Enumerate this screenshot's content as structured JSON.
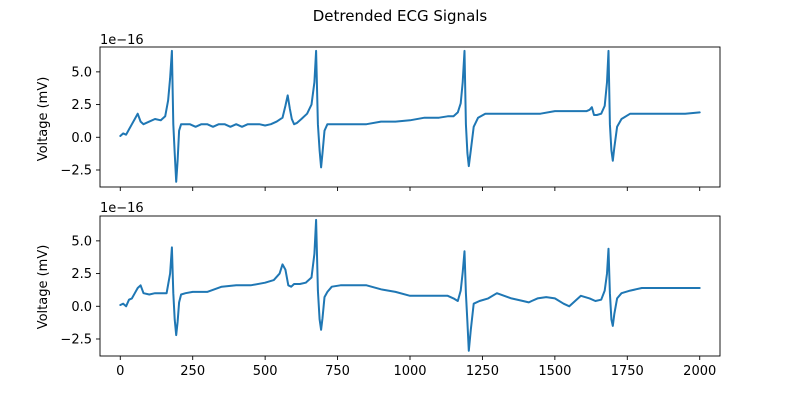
{
  "figure": {
    "title": "Detrended ECG Signals"
  },
  "chart_data": [
    {
      "type": "line",
      "ylabel": "Voltage (mV)",
      "offset_text": "1e−16",
      "xlim": [
        -70,
        2070
      ],
      "ylim": [
        -3.8,
        6.9
      ],
      "x_ticks": [
        0,
        250,
        500,
        750,
        1000,
        1250,
        1500,
        1750,
        2000
      ],
      "show_x_tick_labels": false,
      "y_ticks": [
        -2.5,
        0.0,
        2.5,
        5.0
      ],
      "y_tick_labels": [
        "−2.5",
        "0.0",
        "2.5",
        "5.0"
      ],
      "grid": false,
      "color": "#1f77b4",
      "series": [
        {
          "x": [
            0,
            10,
            20,
            30,
            40,
            50,
            60,
            70,
            80,
            100,
            120,
            140,
            155,
            165,
            172,
            178,
            183,
            188,
            193,
            198,
            203,
            210,
            220,
            240,
            260,
            280,
            300,
            320,
            340,
            360,
            380,
            400,
            420,
            440,
            460,
            480,
            500,
            520,
            540,
            560,
            570,
            578,
            585,
            592,
            600,
            610,
            625,
            645,
            660,
            670,
            676,
            682,
            688,
            693,
            698,
            705,
            715,
            730,
            760,
            800,
            850,
            900,
            950,
            1000,
            1050,
            1100,
            1130,
            1150,
            1165,
            1175,
            1182,
            1188,
            1193,
            1198,
            1203,
            1210,
            1220,
            1235,
            1260,
            1300,
            1350,
            1400,
            1450,
            1500,
            1550,
            1590,
            1610,
            1620,
            1628,
            1635,
            1645,
            1660,
            1672,
            1680,
            1685,
            1690,
            1695,
            1700,
            1705,
            1715,
            1730,
            1760,
            1800,
            1850,
            1900,
            1950,
            2000
          ],
          "y": [
            0.1,
            0.3,
            0.2,
            0.6,
            1.0,
            1.4,
            1.8,
            1.2,
            1.0,
            1.2,
            1.4,
            1.3,
            1.6,
            2.8,
            4.5,
            6.6,
            1.0,
            -1.2,
            -3.4,
            -1.8,
            0.5,
            1.0,
            1.0,
            1.0,
            0.8,
            1.0,
            1.0,
            0.8,
            1.0,
            1.0,
            0.8,
            1.0,
            0.8,
            1.0,
            1.0,
            1.0,
            0.9,
            1.0,
            1.2,
            1.5,
            2.4,
            3.2,
            2.2,
            1.4,
            1.0,
            1.1,
            1.4,
            1.8,
            2.5,
            4.2,
            6.6,
            1.0,
            -1.0,
            -2.3,
            -1.2,
            0.5,
            1.0,
            1.0,
            1.0,
            1.0,
            1.0,
            1.2,
            1.2,
            1.3,
            1.5,
            1.5,
            1.6,
            1.6,
            1.9,
            2.6,
            4.2,
            6.6,
            1.0,
            -1.2,
            -2.2,
            -1.0,
            0.8,
            1.5,
            1.8,
            1.8,
            1.8,
            1.8,
            1.8,
            2.0,
            2.0,
            2.0,
            2.0,
            2.1,
            2.3,
            1.7,
            1.7,
            1.8,
            2.4,
            4.2,
            6.6,
            1.0,
            -1.0,
            -1.8,
            -0.8,
            0.8,
            1.4,
            1.8,
            1.8,
            1.8,
            1.8,
            1.8,
            1.9
          ]
        }
      ]
    },
    {
      "type": "line",
      "ylabel": "Voltage (mV)",
      "offset_text": "1e−16",
      "xlim": [
        -70,
        2070
      ],
      "ylim": [
        -3.8,
        6.9
      ],
      "x_ticks": [
        0,
        250,
        500,
        750,
        1000,
        1250,
        1500,
        1750,
        2000
      ],
      "x_tick_labels": [
        "0",
        "250",
        "500",
        "750",
        "1000",
        "1250",
        "1500",
        "1750",
        "2000"
      ],
      "show_x_tick_labels": true,
      "y_ticks": [
        -2.5,
        0.0,
        2.5,
        5.0
      ],
      "y_tick_labels": [
        "−2.5",
        "0.0",
        "2.5",
        "5.0"
      ],
      "grid": false,
      "color": "#1f77b4",
      "series": [
        {
          "x": [
            0,
            10,
            20,
            30,
            40,
            50,
            60,
            70,
            80,
            100,
            120,
            140,
            160,
            172,
            178,
            183,
            188,
            193,
            198,
            203,
            210,
            225,
            250,
            300,
            350,
            400,
            450,
            500,
            530,
            550,
            560,
            570,
            580,
            590,
            600,
            620,
            640,
            660,
            670,
            676,
            682,
            688,
            693,
            698,
            705,
            715,
            730,
            760,
            800,
            850,
            900,
            950,
            1000,
            1050,
            1100,
            1130,
            1150,
            1165,
            1175,
            1182,
            1188,
            1193,
            1198,
            1203,
            1210,
            1220,
            1240,
            1270,
            1300,
            1350,
            1390,
            1410,
            1420,
            1440,
            1470,
            1500,
            1530,
            1550,
            1570,
            1590,
            1620,
            1640,
            1660,
            1672,
            1680,
            1685,
            1690,
            1695,
            1700,
            1705,
            1715,
            1730,
            1760,
            1800,
            1850,
            1900,
            1950,
            2000
          ],
          "y": [
            0.1,
            0.2,
            0.0,
            0.5,
            0.6,
            1.0,
            1.4,
            1.6,
            1.0,
            0.9,
            1.0,
            1.0,
            1.0,
            2.5,
            4.5,
            1.0,
            -1.0,
            -2.2,
            -1.2,
            0.3,
            0.9,
            1.0,
            1.1,
            1.1,
            1.5,
            1.6,
            1.6,
            1.8,
            2.0,
            2.5,
            3.2,
            2.8,
            1.6,
            1.5,
            1.7,
            1.7,
            1.8,
            2.2,
            4.0,
            6.6,
            1.2,
            -1.0,
            -1.8,
            -0.9,
            0.7,
            1.1,
            1.5,
            1.6,
            1.6,
            1.6,
            1.3,
            1.1,
            0.8,
            0.8,
            0.8,
            0.8,
            0.6,
            0.4,
            1.2,
            2.6,
            4.2,
            1.0,
            -1.2,
            -3.4,
            -1.8,
            0.2,
            0.4,
            0.6,
            1.0,
            0.6,
            0.4,
            0.3,
            0.4,
            0.6,
            0.7,
            0.6,
            0.2,
            0.0,
            0.4,
            0.8,
            0.6,
            0.4,
            0.5,
            1.2,
            2.5,
            4.4,
            1.0,
            -1.0,
            -1.5,
            -0.6,
            0.6,
            1.0,
            1.2,
            1.4,
            1.4,
            1.4,
            1.4,
            1.4
          ]
        }
      ]
    }
  ]
}
